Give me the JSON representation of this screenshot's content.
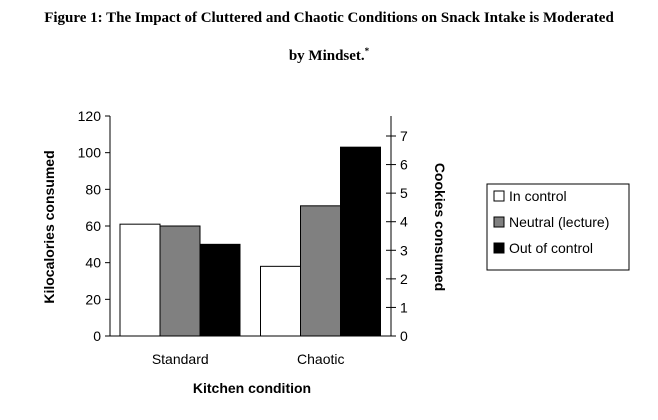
{
  "figure": {
    "title_line1": "Figure 1:  The Impact of Cluttered and Chaotic Conditions on Snack Intake is Moderated",
    "title_line2": "by Mindset.",
    "footnote_mark": "*"
  },
  "chart_data": {
    "type": "bar",
    "categories": [
      "Standard",
      "Chaotic"
    ],
    "series": [
      {
        "name": "In control",
        "values": [
          61,
          38
        ],
        "color": "#ffffff"
      },
      {
        "name": "Neutral (lecture)",
        "values": [
          60,
          71
        ],
        "color": "#808080"
      },
      {
        "name": "Out of control",
        "values": [
          50,
          103
        ],
        "color": "#000000"
      }
    ],
    "xlabel": "Kitchen condition",
    "ylabel": "Kilocalories consumed",
    "ylim": [
      0,
      120
    ],
    "yticks": [
      0,
      20,
      40,
      60,
      80,
      100,
      120
    ],
    "y2label": "Cookies consumed",
    "y2lim": [
      0,
      7.7
    ],
    "y2ticks": [
      0,
      1,
      2,
      3,
      4,
      5,
      6,
      7
    ],
    "grid": false,
    "legend_position": "right"
  }
}
